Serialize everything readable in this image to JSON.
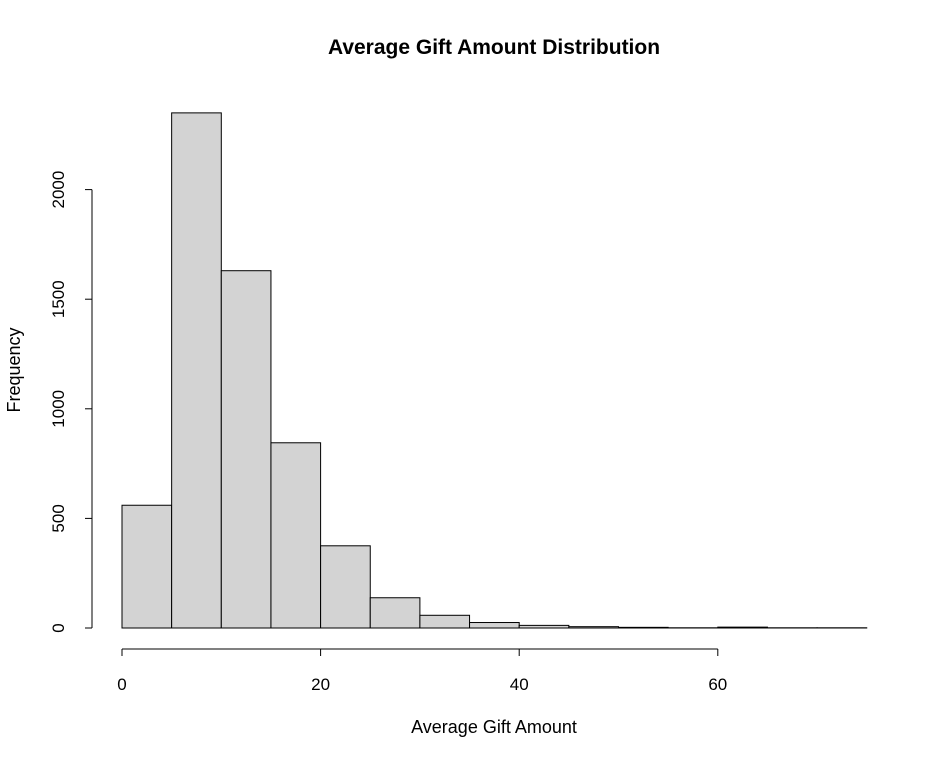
{
  "chart_data": {
    "type": "bar",
    "title": "Average Gift Amount Distribution",
    "xlabel": "Average Gift Amount",
    "ylabel": "Frequency",
    "bins": [
      {
        "from": 0,
        "to": 5,
        "count": 560
      },
      {
        "from": 5,
        "to": 10,
        "count": 2350
      },
      {
        "from": 10,
        "to": 15,
        "count": 1630
      },
      {
        "from": 15,
        "to": 20,
        "count": 845
      },
      {
        "from": 20,
        "to": 25,
        "count": 375
      },
      {
        "from": 25,
        "to": 30,
        "count": 138
      },
      {
        "from": 30,
        "to": 35,
        "count": 58
      },
      {
        "from": 35,
        "to": 40,
        "count": 25
      },
      {
        "from": 40,
        "to": 45,
        "count": 12
      },
      {
        "from": 45,
        "to": 50,
        "count": 6
      },
      {
        "from": 50,
        "to": 55,
        "count": 3
      },
      {
        "from": 55,
        "to": 60,
        "count": 1
      },
      {
        "from": 60,
        "to": 65,
        "count": 4
      },
      {
        "from": 65,
        "to": 70,
        "count": 1
      },
      {
        "from": 70,
        "to": 75,
        "count": 1
      }
    ],
    "xlim": [
      0,
      75
    ],
    "ylim": [
      0,
      2400
    ],
    "x_ticks": [
      0,
      20,
      40,
      60
    ],
    "y_ticks": [
      0,
      500,
      1000,
      1500,
      2000
    ],
    "bar_color": "#d3d3d3",
    "grid": false,
    "legend": "none"
  }
}
